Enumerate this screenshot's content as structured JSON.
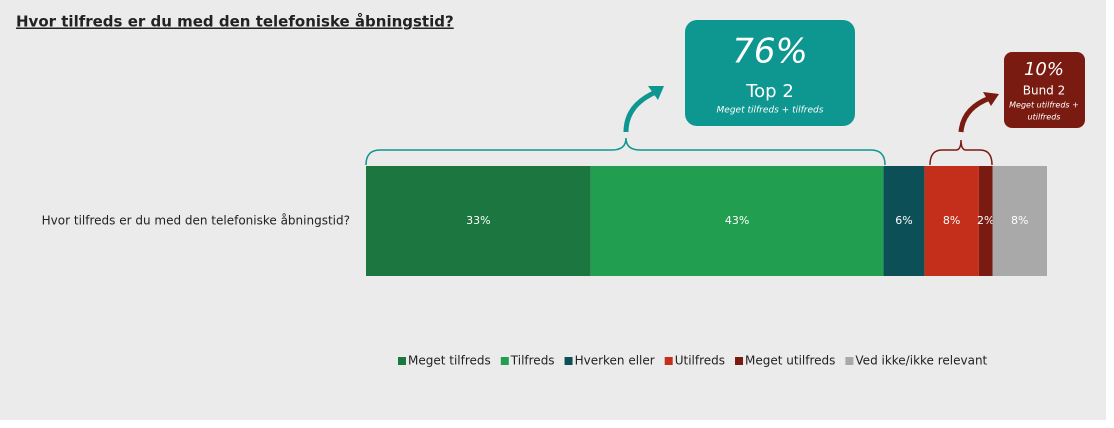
{
  "chart_data": {
    "type": "stacked_bar_horizontal",
    "title": "Hvor tilfreds er du med den telefoniske åbningstid?",
    "categories": [
      "Hvor tilfreds er du med den telefoniske åbningstid?"
    ],
    "xlim": [
      0,
      100
    ],
    "series": [
      {
        "name": "Meget tilfreds",
        "color": "#1b7640",
        "values": [
          33
        ],
        "value_labels": [
          "33%"
        ]
      },
      {
        "name": "Tilfreds",
        "color": "#229e50",
        "values": [
          43
        ],
        "value_labels": [
          "43%"
        ]
      },
      {
        "name": "Hverken eller",
        "color": "#0c4f56",
        "values": [
          6
        ],
        "value_labels": [
          "6%"
        ]
      },
      {
        "name": "Utilfreds",
        "color": "#c42f1b",
        "values": [
          8
        ],
        "value_labels": [
          "8%"
        ]
      },
      {
        "name": "Meget utilfreds",
        "color": "#7a1b12",
        "values": [
          2
        ],
        "value_labels": [
          "2%"
        ]
      },
      {
        "name": "Ved ikke/ikke relevant",
        "color": "#a9a9a9",
        "values": [
          8
        ],
        "value_labels": [
          "8%"
        ]
      }
    ],
    "annotations": [
      {
        "label": "76%",
        "title": "Top 2",
        "subtitle": [
          "Meget tilfreds + tilfreds"
        ],
        "color": "#0e9690"
      },
      {
        "label": "10%",
        "title": "Bund 2",
        "subtitle": [
          "Meget utilfreds +",
          "utilfreds"
        ],
        "color": "#7a1b12"
      }
    ]
  }
}
